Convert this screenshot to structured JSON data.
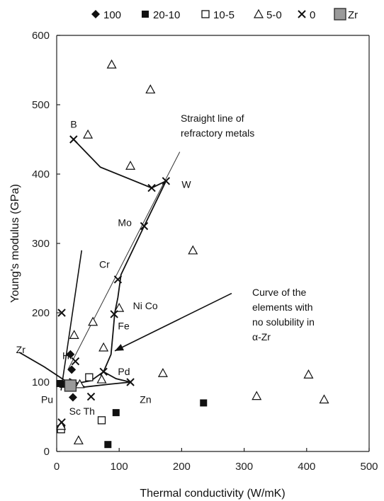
{
  "chart_data": {
    "type": "scatter",
    "xlabel": "Thermal conductivity (W/mK)",
    "ylabel": "Young's modulus (GPa)",
    "xlim": [
      0,
      500
    ],
    "ylim": [
      0,
      600
    ],
    "x_ticks": [
      "0",
      "100",
      "200",
      "300",
      "400",
      "500"
    ],
    "y_ticks": [
      "0",
      "100",
      "200",
      "300",
      "400",
      "500",
      "600"
    ],
    "x_tick_values": [
      0,
      100,
      200,
      300,
      400,
      500
    ],
    "y_tick_values": [
      0,
      100,
      200,
      300,
      400,
      500,
      600
    ],
    "grid": false,
    "legend_position": "top",
    "series": [
      {
        "name": "100",
        "marker": "diamond",
        "points": [
          [
            22,
            140
          ],
          [
            24,
            118
          ],
          [
            26,
            78
          ]
        ]
      },
      {
        "name": "20-10",
        "marker": "square-filled",
        "points": [
          [
            5,
            98
          ],
          [
            10,
            97
          ],
          [
            95,
            56
          ],
          [
            82,
            10
          ],
          [
            235,
            70
          ]
        ]
      },
      {
        "name": "10-5",
        "marker": "square-open",
        "points": [
          [
            7,
            32
          ],
          [
            52,
            107
          ],
          [
            72,
            45
          ]
        ]
      },
      {
        "name": "5-0",
        "marker": "triangle",
        "points": [
          [
            88,
            558
          ],
          [
            150,
            522
          ],
          [
            50,
            457
          ],
          [
            118,
            412
          ],
          [
            218,
            290
          ],
          [
            100,
            207
          ],
          [
            58,
            187
          ],
          [
            28,
            168
          ],
          [
            75,
            150
          ],
          [
            72,
            104
          ],
          [
            37,
            97
          ],
          [
            170,
            113
          ],
          [
            320,
            80
          ],
          [
            403,
            111
          ],
          [
            428,
            75
          ],
          [
            35,
            16
          ],
          [
            7,
            37
          ]
        ]
      },
      {
        "name": "0",
        "marker": "x",
        "points": [
          [
            27,
            450
          ],
          [
            152,
            380
          ],
          [
            175,
            390
          ],
          [
            140,
            325
          ],
          [
            98,
            248
          ],
          [
            92,
            198
          ],
          [
            8,
            200
          ],
          [
            30,
            130
          ],
          [
            75,
            115
          ],
          [
            118,
            100
          ],
          [
            55,
            79
          ],
          [
            8,
            42
          ]
        ]
      },
      {
        "name": "Zr",
        "marker": "square-gray",
        "points": [
          [
            22,
            95
          ]
        ]
      }
    ],
    "element_labels": [
      {
        "text": "B",
        "x": 22,
        "y": 467
      },
      {
        "text": "W",
        "x": 200,
        "y": 380
      },
      {
        "text": "Mo",
        "x": 98,
        "y": 325
      },
      {
        "text": "Cr",
        "x": 68,
        "y": 265
      },
      {
        "text": "Ni Co",
        "x": 122,
        "y": 205
      },
      {
        "text": "Fe",
        "x": 98,
        "y": 176
      },
      {
        "text": "Zr",
        "x": -65,
        "y": 142
      },
      {
        "text": "Hf",
        "x": 9,
        "y": 133
      },
      {
        "text": "Pd",
        "x": 98,
        "y": 110
      },
      {
        "text": "Zn",
        "x": 133,
        "y": 70
      },
      {
        "text": "Pu",
        "x": -25,
        "y": 70
      },
      {
        "text": "Sc Th",
        "x": 20,
        "y": 53
      }
    ],
    "annotations": [
      {
        "lines": [
          "Straight line of",
          "refractory metals"
        ]
      },
      {
        "lines": [
          "Curve of the",
          "elements with",
          "no solubility in",
          "α-Zr"
        ]
      }
    ],
    "refractory_line_endpoints": [
      [
        18,
        118
      ],
      [
        197,
        432
      ]
    ],
    "upper_curve": [
      [
        27,
        450
      ],
      [
        70,
        410
      ],
      [
        152,
        380
      ],
      [
        175,
        390
      ]
    ],
    "main_curve": [
      [
        175,
        390
      ],
      [
        140,
        325
      ],
      [
        103,
        255
      ],
      [
        98,
        222
      ],
      [
        93,
        200
      ],
      [
        90,
        170
      ],
      [
        87,
        140
      ],
      [
        75,
        115
      ],
      [
        55,
        102
      ],
      [
        25,
        97
      ]
    ],
    "zr_curve": [
      [
        -60,
        143
      ],
      [
        -20,
        122
      ],
      [
        22,
        97
      ]
    ],
    "pd_branch": [
      [
        75,
        115
      ],
      [
        95,
        105
      ],
      [
        118,
        100
      ]
    ],
    "extra_curve": [
      [
        20,
        105
      ],
      [
        45,
        93
      ],
      [
        85,
        97
      ],
      [
        118,
        100
      ]
    ],
    "pointer_arrows": [
      {
        "from": [
          280,
          228
        ],
        "to": [
          93,
          145
        ]
      },
      {
        "from": [
          40,
          290
        ],
        "to": [
          7,
          88
        ]
      }
    ],
    "legend_entries": [
      {
        "name": "100",
        "marker": "diamond"
      },
      {
        "name": "20-10",
        "marker": "square-filled"
      },
      {
        "name": "10-5",
        "marker": "square-open"
      },
      {
        "name": "5-0",
        "marker": "triangle"
      },
      {
        "name": "0",
        "marker": "x"
      },
      {
        "name": "Zr",
        "marker": "square-gray"
      }
    ]
  }
}
